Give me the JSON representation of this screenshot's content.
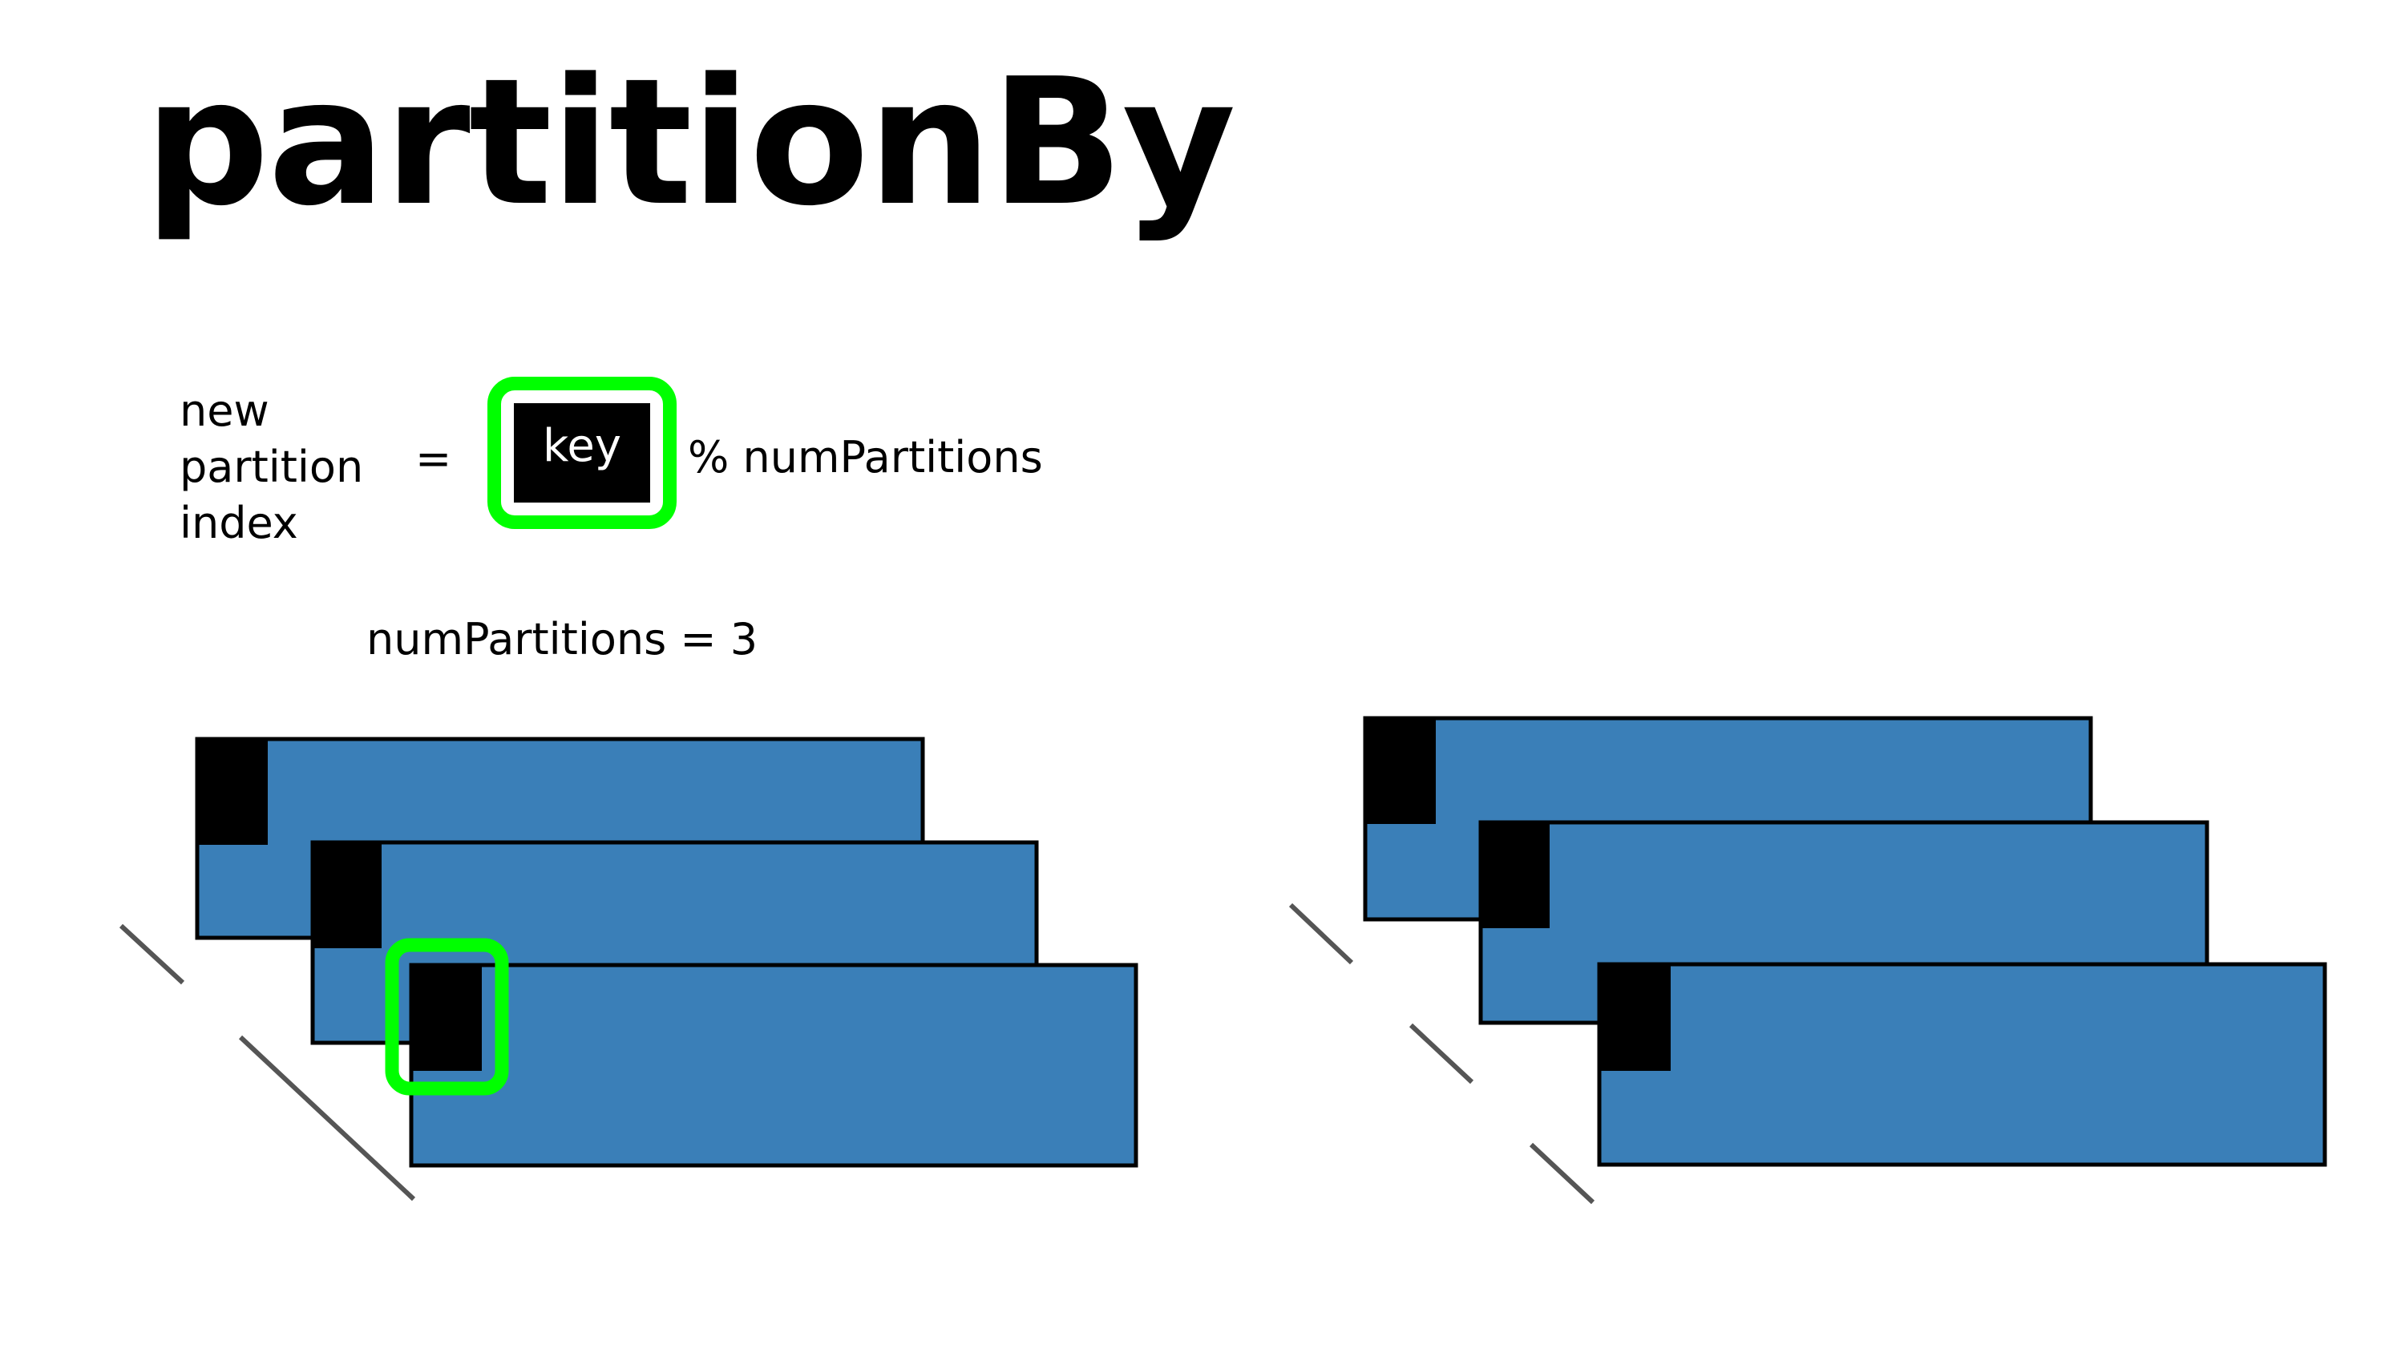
{
  "slide": {
    "title": "partitionBy",
    "formula": {
      "lhs_lines": [
        "new",
        "partition",
        "index"
      ],
      "equals": "=",
      "key_label": "key",
      "modulo": "% numPartitions"
    },
    "num_partitions_label": "numPartitions = 3"
  },
  "colors": {
    "partition_fill": "#3a7fb8",
    "key_block": "#000000",
    "highlight": "#00ff00",
    "slash_lines": "#555555"
  },
  "diagram": {
    "left_group": {
      "partitions": 3,
      "highlighted_key_partition": 3
    },
    "right_group": {
      "partitions": 3
    }
  }
}
